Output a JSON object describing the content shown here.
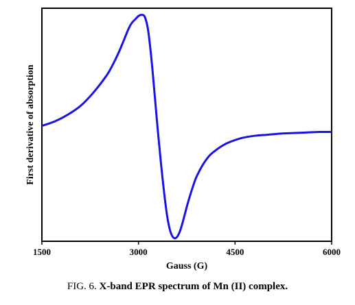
{
  "caption": {
    "prefix": "FIG. 6.",
    "text": "X-band EPR spectrum of Mn (II) complex."
  },
  "chart_data": {
    "type": "line",
    "title": "",
    "xlabel": "Gauss (G)",
    "ylabel": "First derivative of absorption",
    "xlim": [
      1500,
      6000
    ],
    "ylim": [
      -1.05,
      1.05
    ],
    "xticks": [
      1500,
      3000,
      4500,
      6000
    ],
    "xtick_labels": [
      "1500",
      "3000",
      "4500",
      "6000"
    ],
    "yticks_visible": false,
    "grid": false,
    "line_color": "#1a10e8",
    "series": [
      {
        "x": [
          1500,
          1700,
          1900,
          2100,
          2300,
          2500,
          2600,
          2700,
          2800,
          2850,
          2900,
          2950,
          3000,
          3050,
          3100,
          3150,
          3200,
          3250,
          3300,
          3350,
          3400,
          3450,
          3500,
          3550,
          3600,
          3650,
          3700,
          3750,
          3800,
          3850,
          3900,
          4000,
          4100,
          4200,
          4300,
          4400,
          4600,
          4800,
          5000,
          5200,
          5400,
          5600,
          5800,
          6000
        ],
        "y": [
          -0.01,
          0.03,
          0.09,
          0.17,
          0.29,
          0.44,
          0.54,
          0.66,
          0.8,
          0.87,
          0.92,
          0.95,
          0.98,
          0.99,
          0.97,
          0.85,
          0.6,
          0.28,
          -0.05,
          -0.35,
          -0.62,
          -0.84,
          -0.97,
          -1.02,
          -1.01,
          -0.95,
          -0.85,
          -0.74,
          -0.64,
          -0.55,
          -0.47,
          -0.36,
          -0.28,
          -0.23,
          -0.19,
          -0.16,
          -0.12,
          -0.1,
          -0.09,
          -0.08,
          -0.075,
          -0.07,
          -0.065,
          -0.065
        ]
      }
    ]
  }
}
